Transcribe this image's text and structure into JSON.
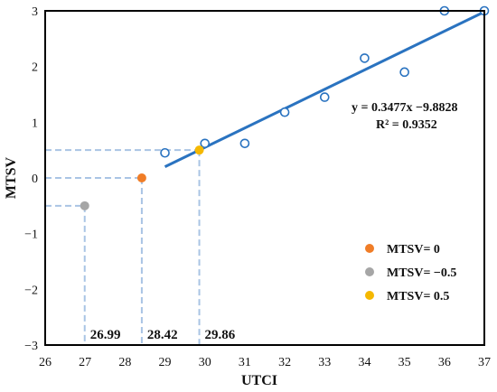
{
  "chart_data": {
    "type": "scatter",
    "xlabel": "UTCI",
    "ylabel": "MTSV",
    "xlim": [
      26,
      37
    ],
    "ylim": [
      -3,
      3
    ],
    "x_ticks": [
      "26",
      "27",
      "28",
      "29",
      "30",
      "31",
      "32",
      "33",
      "34",
      "35",
      "36",
      "37"
    ],
    "y_ticks": [
      "−3",
      "−2",
      "−1",
      "0",
      "1",
      "2",
      "3"
    ],
    "grid": false,
    "observed": {
      "marker": "open-circle",
      "color": "#2a73c0",
      "points": [
        {
          "x": 29.0,
          "y": 0.45
        },
        {
          "x": 30.0,
          "y": 0.62
        },
        {
          "x": 31.0,
          "y": 0.62
        },
        {
          "x": 32.0,
          "y": 1.18
        },
        {
          "x": 33.0,
          "y": 1.45
        },
        {
          "x": 34.0,
          "y": 2.15
        },
        {
          "x": 35.0,
          "y": 1.9
        },
        {
          "x": 36.0,
          "y": 3.0
        },
        {
          "x": 37.0,
          "y": 3.0
        }
      ]
    },
    "fit": {
      "color": "#2a73c0",
      "slope": 0.3477,
      "intercept": -9.8828,
      "x_range": [
        29,
        37
      ],
      "equation_text": "y = 0.3477x −9.8828",
      "r2_text": "R² = 0.9352"
    },
    "highlights": [
      {
        "name": "MTSV= 0",
        "x": 28.42,
        "y": 0,
        "color": "#f07d27",
        "label": "28.42"
      },
      {
        "name": "MTSV= −0.5",
        "x": 26.99,
        "y": -0.5,
        "color": "#a6a6a6",
        "label": "26.99"
      },
      {
        "name": "MTSV= 0.5",
        "x": 29.86,
        "y": 0.5,
        "color": "#f5b800",
        "label": "29.86"
      }
    ],
    "guide_color": "#a9c4e4",
    "legend_position": "bottom-right"
  }
}
